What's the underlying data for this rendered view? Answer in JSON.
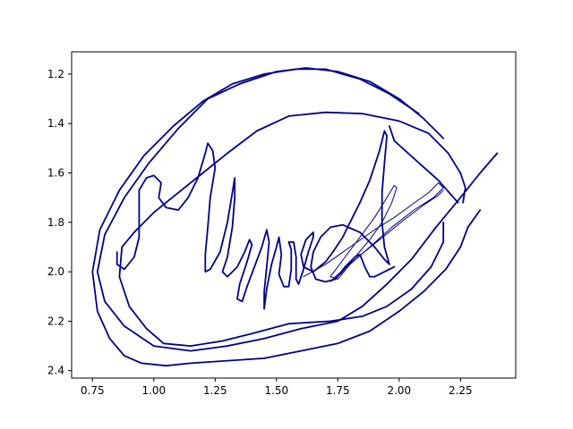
{
  "chart_data": {
    "type": "line",
    "title": "",
    "xlabel": "",
    "ylabel": "",
    "xlim": [
      0.665,
      2.475
    ],
    "ylim": [
      2.43,
      1.11
    ],
    "y_inverted": true,
    "grid": false,
    "xticks": [
      "0.75",
      "1.00",
      "1.25",
      "1.50",
      "1.75",
      "2.00",
      "2.25"
    ],
    "xtick_values": [
      0.75,
      1.0,
      1.25,
      1.5,
      1.75,
      2.0,
      2.25
    ],
    "yticks": [
      "1.2",
      "1.4",
      "1.6",
      "1.8",
      "2.0",
      "2.2",
      "2.4"
    ],
    "ytick_values": [
      1.2,
      1.4,
      1.6,
      1.8,
      2.0,
      2.2,
      2.4
    ],
    "line_color": "#00008b",
    "series": [
      {
        "values": [
          [
            2.26,
            1.72
          ],
          [
            2.27,
            1.66
          ],
          [
            2.25,
            1.6
          ],
          [
            2.2,
            1.52
          ],
          [
            2.12,
            1.44
          ],
          [
            2.0,
            1.39
          ],
          [
            1.85,
            1.36
          ],
          [
            1.7,
            1.355
          ],
          [
            1.55,
            1.37
          ],
          [
            1.42,
            1.43
          ],
          [
            1.3,
            1.52
          ],
          [
            1.2,
            1.6
          ],
          [
            1.1,
            1.68
          ],
          [
            1.0,
            1.76
          ],
          [
            0.92,
            1.84
          ],
          [
            0.87,
            1.9
          ],
          [
            0.86,
            2.02
          ],
          [
            0.9,
            2.14
          ],
          [
            0.97,
            2.23
          ],
          [
            1.04,
            2.29
          ],
          [
            1.15,
            2.3
          ],
          [
            1.28,
            2.28
          ],
          [
            1.4,
            2.25
          ],
          [
            1.55,
            2.21
          ],
          [
            1.72,
            2.2
          ],
          [
            1.85,
            2.18
          ],
          [
            1.95,
            2.14
          ],
          [
            2.05,
            2.07
          ],
          [
            2.13,
            1.98
          ],
          [
            2.18,
            1.88
          ],
          [
            2.18,
            1.8
          ]
        ]
      },
      {
        "values": [
          [
            2.4,
            1.52
          ],
          [
            2.33,
            1.6
          ],
          [
            2.25,
            1.7
          ],
          [
            2.15,
            1.82
          ],
          [
            2.05,
            1.95
          ],
          [
            1.95,
            2.05
          ],
          [
            1.85,
            2.14
          ],
          [
            1.75,
            2.2
          ],
          [
            1.6,
            2.23
          ],
          [
            1.45,
            2.27
          ],
          [
            1.3,
            2.3
          ],
          [
            1.15,
            2.32
          ],
          [
            1.0,
            2.3
          ],
          [
            0.88,
            2.22
          ],
          [
            0.8,
            2.12
          ],
          [
            0.77,
            2.0
          ],
          [
            0.8,
            1.85
          ],
          [
            0.88,
            1.7
          ],
          [
            0.98,
            1.56
          ],
          [
            1.1,
            1.42
          ],
          [
            1.22,
            1.3
          ],
          [
            1.35,
            1.24
          ],
          [
            1.5,
            1.19
          ],
          [
            1.62,
            1.175
          ],
          [
            1.75,
            1.19
          ],
          [
            1.88,
            1.23
          ],
          [
            2.0,
            1.3
          ],
          [
            2.1,
            1.38
          ],
          [
            2.18,
            1.46
          ]
        ]
      },
      {
        "values": [
          [
            1.96,
            1.41
          ],
          [
            1.98,
            1.47
          ],
          [
            2.07,
            1.55
          ],
          [
            2.16,
            1.63
          ],
          [
            2.24,
            1.72
          ]
        ]
      },
      {
        "values": [
          [
            2.33,
            1.75
          ],
          [
            2.28,
            1.82
          ],
          [
            2.25,
            1.9
          ],
          [
            2.19,
            1.99
          ],
          [
            2.1,
            2.08
          ],
          [
            2.0,
            2.16
          ],
          [
            1.88,
            2.24
          ],
          [
            1.75,
            2.29
          ],
          [
            1.6,
            2.32
          ],
          [
            1.45,
            2.35
          ],
          [
            1.3,
            2.36
          ],
          [
            1.15,
            2.37
          ],
          [
            1.05,
            2.38
          ],
          [
            0.95,
            2.37
          ],
          [
            0.88,
            2.34
          ],
          [
            0.82,
            2.27
          ],
          [
            0.77,
            2.16
          ],
          [
            0.75,
            2.0
          ],
          [
            0.78,
            1.83
          ],
          [
            0.86,
            1.67
          ],
          [
            0.96,
            1.53
          ],
          [
            1.08,
            1.41
          ],
          [
            1.2,
            1.31
          ],
          [
            1.32,
            1.24
          ],
          [
            1.45,
            1.2
          ],
          [
            1.58,
            1.18
          ],
          [
            1.7,
            1.18
          ],
          [
            1.84,
            1.22
          ],
          [
            1.96,
            1.28
          ],
          [
            2.08,
            1.36
          ]
        ]
      },
      {
        "values": [
          [
            0.85,
            1.92
          ],
          [
            0.85,
            1.97
          ],
          [
            0.88,
            1.99
          ],
          [
            0.92,
            1.94
          ],
          [
            0.94,
            1.86
          ],
          [
            0.94,
            1.76
          ],
          [
            0.94,
            1.67
          ],
          [
            0.97,
            1.62
          ],
          [
            1.0,
            1.61
          ],
          [
            1.03,
            1.64
          ],
          [
            1.02,
            1.7
          ],
          [
            1.05,
            1.74
          ],
          [
            1.1,
            1.75
          ],
          [
            1.14,
            1.7
          ],
          [
            1.18,
            1.62
          ],
          [
            1.21,
            1.52
          ],
          [
            1.22,
            1.48
          ],
          [
            1.24,
            1.51
          ],
          [
            1.25,
            1.58
          ],
          [
            1.23,
            1.7
          ],
          [
            1.22,
            1.82
          ],
          [
            1.21,
            1.93
          ],
          [
            1.21,
            2.0
          ],
          [
            1.23,
            1.99
          ],
          [
            1.27,
            1.92
          ],
          [
            1.3,
            1.8
          ],
          [
            1.32,
            1.68
          ],
          [
            1.33,
            1.62
          ],
          [
            1.33,
            1.7
          ],
          [
            1.32,
            1.82
          ],
          [
            1.3,
            1.94
          ],
          [
            1.28,
            2.0
          ],
          [
            1.3,
            2.02
          ],
          [
            1.34,
            1.98
          ],
          [
            1.37,
            1.92
          ],
          [
            1.39,
            1.87
          ],
          [
            1.4,
            1.89
          ],
          [
            1.38,
            1.96
          ],
          [
            1.35,
            2.05
          ],
          [
            1.34,
            2.11
          ],
          [
            1.36,
            2.12
          ],
          [
            1.38,
            2.06
          ],
          [
            1.41,
            1.98
          ],
          [
            1.44,
            1.9
          ],
          [
            1.46,
            1.83
          ],
          [
            1.47,
            1.88
          ],
          [
            1.46,
            1.98
          ],
          [
            1.45,
            2.08
          ],
          [
            1.45,
            2.15
          ],
          [
            1.46,
            2.07
          ],
          [
            1.48,
            1.97
          ],
          [
            1.5,
            1.9
          ],
          [
            1.51,
            1.86
          ],
          [
            1.52,
            1.93
          ],
          [
            1.51,
            2.01
          ],
          [
            1.53,
            2.06
          ],
          [
            1.55,
            2.06
          ],
          [
            1.56,
            1.99
          ],
          [
            1.56,
            1.91
          ],
          [
            1.55,
            1.88
          ],
          [
            1.57,
            1.88
          ],
          [
            1.58,
            1.94
          ],
          [
            1.58,
            2.03
          ],
          [
            1.59,
            2.05
          ],
          [
            1.61,
            1.99
          ],
          [
            1.63,
            1.92
          ],
          [
            1.65,
            1.86
          ],
          [
            1.65,
            1.84
          ],
          [
            1.62,
            1.87
          ],
          [
            1.6,
            1.93
          ],
          [
            1.61,
            1.98
          ],
          [
            1.65,
            2.0
          ],
          [
            1.7,
            1.96
          ],
          [
            1.73,
            1.92
          ],
          [
            1.77,
            1.86
          ],
          [
            1.8,
            1.8
          ],
          [
            1.84,
            1.72
          ],
          [
            1.88,
            1.63
          ],
          [
            1.92,
            1.51
          ],
          [
            1.94,
            1.43
          ],
          [
            1.95,
            1.45
          ],
          [
            1.94,
            1.56
          ],
          [
            1.93,
            1.68
          ],
          [
            1.93,
            1.8
          ],
          [
            1.94,
            1.9
          ],
          [
            1.96,
            1.97
          ],
          [
            1.94,
            1.95
          ],
          [
            1.9,
            1.9
          ],
          [
            1.84,
            1.84
          ],
          [
            1.77,
            1.81
          ],
          [
            1.72,
            1.82
          ],
          [
            1.68,
            1.86
          ],
          [
            1.65,
            1.92
          ],
          [
            1.64,
            1.98
          ],
          [
            1.66,
            2.03
          ],
          [
            1.7,
            2.04
          ],
          [
            1.74,
            2.03
          ],
          [
            1.78,
            1.98
          ],
          [
            1.82,
            1.94
          ],
          [
            1.84,
            1.93
          ],
          [
            1.86,
            1.98
          ],
          [
            1.88,
            2.02
          ],
          [
            1.9,
            2.02
          ],
          [
            1.94,
            2.0
          ],
          [
            1.98,
            1.98
          ]
        ]
      },
      {
        "values": [
          [
            1.61,
            2.02
          ],
          [
            1.7,
            1.97
          ],
          [
            1.8,
            1.9
          ],
          [
            1.9,
            1.83
          ],
          [
            1.98,
            1.78
          ],
          [
            2.05,
            1.73
          ],
          [
            2.12,
            1.68
          ],
          [
            2.16,
            1.64
          ],
          [
            2.18,
            1.66
          ],
          [
            2.14,
            1.7
          ],
          [
            2.06,
            1.75
          ],
          [
            1.97,
            1.82
          ],
          [
            1.88,
            1.9
          ],
          [
            1.8,
            1.97
          ],
          [
            1.75,
            2.03
          ],
          [
            1.72,
            2.02
          ],
          [
            1.78,
            1.94
          ],
          [
            1.84,
            1.86
          ],
          [
            1.9,
            1.78
          ],
          [
            1.95,
            1.7
          ],
          [
            1.98,
            1.65
          ],
          [
            1.99,
            1.66
          ],
          [
            1.97,
            1.72
          ],
          [
            1.93,
            1.8
          ],
          [
            1.88,
            1.87
          ],
          [
            1.82,
            1.94
          ],
          [
            1.76,
            2.01
          ],
          [
            1.72,
            2.04
          ],
          [
            1.74,
            2.02
          ],
          [
            1.82,
            1.95
          ],
          [
            1.92,
            1.87
          ],
          [
            2.02,
            1.79
          ],
          [
            2.1,
            1.73
          ],
          [
            2.16,
            1.69
          ],
          [
            2.18,
            1.67
          ]
        ]
      }
    ]
  }
}
